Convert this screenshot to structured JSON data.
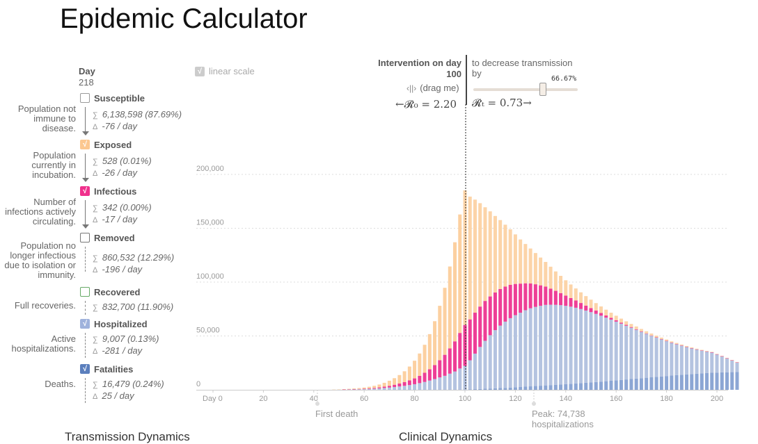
{
  "title": "Epidemic Calculator",
  "day": {
    "label": "Day",
    "value": "218"
  },
  "compartments": [
    {
      "name": "Susceptible",
      "checked": false,
      "color": "#ffffff",
      "border": "#999999",
      "description": [
        "Population not",
        "immune to",
        "disease."
      ],
      "sum": "6,138,598 (87.69%)",
      "delta": "-76 / day"
    },
    {
      "name": "Exposed",
      "checked": true,
      "color": "#fcc890",
      "border": "#fcc890",
      "description": [
        "Population",
        "currently in",
        "incubation."
      ],
      "sum": "528 (0.01%)",
      "delta": "-26 / day"
    },
    {
      "name": "Infectious",
      "checked": true,
      "color": "#f0308c",
      "border": "#f0308c",
      "description": [
        "Number of",
        "infections actively",
        "circulating."
      ],
      "sum": "342 (0.00%)",
      "delta": "-17 / day"
    },
    {
      "name": "Removed",
      "checked": false,
      "color": "#ffffff",
      "border": "#777777",
      "description": [
        "Population no",
        "longer infectious",
        "due to isolation or",
        "immunity."
      ],
      "sum": "860,532 (12.29%)",
      "delta": "-196 / day"
    },
    {
      "name": "Recovered",
      "checked": false,
      "color": "#ffffff",
      "border": "#66aa66",
      "description": [
        "Full recoveries."
      ],
      "sum": "832,700 (11.90%)"
    },
    {
      "name": "Hospitalized",
      "checked": true,
      "color": "#9fb2dc",
      "border": "#9fb2dc",
      "description": [
        "Active",
        "hospitalizations."
      ],
      "sum": "9,007 (0.13%)",
      "delta": "-281 / day"
    },
    {
      "name": "Fatalities",
      "checked": true,
      "color": "#5b7fbd",
      "border": "#5b7fbd",
      "description": [
        "Deaths."
      ],
      "sum": "16,479 (0.24%)",
      "delta": "25 / day"
    }
  ],
  "controls": {
    "linear_scale": "linear scale",
    "intervention_label": "Intervention on day",
    "intervention_day": "100",
    "drag_hint": "(drag me)",
    "decrease_text": "to decrease transmission by",
    "slider_percent": "66.67%",
    "slider_fraction": 0.6667,
    "r0_text": "←𝓡₀ = 2.20",
    "rt_text": "𝓡ₜ = 0.73→"
  },
  "annotations": {
    "first_death": "First death",
    "peak": [
      "Peak: 74,738",
      "hospitalizations"
    ]
  },
  "sections": {
    "left": "Transmission Dynamics",
    "right": "Clinical Dynamics"
  },
  "chart_data": {
    "type": "bar",
    "stacked": true,
    "x_start": 0,
    "x_step": 2,
    "intervention_day": 100,
    "ylim": [
      0,
      250000
    ],
    "xlim": [
      0,
      210
    ],
    "yticks": [
      0,
      50000,
      100000,
      150000,
      200000
    ],
    "ytick_labels": [
      "0",
      "50,000",
      "100,000",
      "150,000",
      "200,000"
    ],
    "xticks": [
      0,
      20,
      40,
      60,
      80,
      100,
      120,
      140,
      160,
      180,
      200
    ],
    "xtick_labels": [
      "Day 0",
      "20",
      "40",
      "60",
      "80",
      "100",
      "120",
      "140",
      "160",
      "180",
      "200"
    ],
    "grid": true,
    "series": [
      {
        "name": "Fatalities",
        "color": "#8ca6d4",
        "values": [
          0,
          0,
          0,
          0,
          0,
          0,
          0,
          0,
          0,
          0,
          0,
          0,
          0,
          0,
          0,
          0,
          0,
          0,
          0,
          0,
          0,
          0,
          0,
          0,
          0,
          0,
          0,
          0,
          0,
          0,
          0,
          0,
          0,
          0,
          0,
          0,
          0,
          0,
          0,
          0,
          0,
          0,
          0,
          0,
          0,
          0,
          0,
          0,
          0,
          0,
          200,
          400,
          600,
          800,
          1000,
          1200,
          1400,
          1600,
          1800,
          2000,
          2300,
          2600,
          2900,
          3200,
          3500,
          3800,
          4100,
          4400,
          4700,
          5000,
          5300,
          5600,
          5900,
          6200,
          6500,
          6800,
          7200,
          7600,
          8000,
          8400,
          8800,
          9200,
          9600,
          10000,
          10400,
          10800,
          11200,
          11600,
          12000,
          12400,
          12800,
          13200,
          13600,
          14000,
          14300,
          14600,
          14900,
          15200,
          15500,
          15800,
          16000,
          16200,
          16300,
          16400,
          16479
        ]
      },
      {
        "name": "Hospitalized",
        "color": "#b4c3e0",
        "values": [
          0,
          0,
          0,
          0,
          0,
          0,
          0,
          0,
          0,
          0,
          0,
          0,
          0,
          0,
          0,
          0,
          0,
          0,
          0,
          0,
          0,
          0,
          0,
          0,
          100,
          150,
          200,
          300,
          400,
          500,
          600,
          800,
          1000,
          1300,
          1700,
          2100,
          2600,
          3100,
          3700,
          4400,
          5200,
          6200,
          7300,
          8600,
          10000,
          11500,
          13000,
          15000,
          17000,
          19800,
          22000,
          27000,
          33000,
          39000,
          44500,
          49500,
          54000,
          58000,
          61500,
          64500,
          67000,
          69000,
          71000,
          72500,
          73500,
          74200,
          74738,
          74600,
          74200,
          73600,
          72700,
          71600,
          70300,
          68800,
          67100,
          65300,
          63300,
          61200,
          59000,
          56800,
          54500,
          52200,
          49900,
          47600,
          45300,
          43000,
          40800,
          38600,
          36500,
          34500,
          32500,
          30600,
          28800,
          27100,
          25500,
          24000,
          22600,
          21300,
          20100,
          19000,
          17000,
          15000,
          13000,
          11000,
          9007
        ]
      },
      {
        "name": "Infectious",
        "color": "#ee3e96",
        "values": [
          0,
          0,
          0,
          0,
          0,
          0,
          0,
          0,
          0,
          0,
          0,
          0,
          0,
          0,
          0,
          0,
          0,
          0,
          0,
          0,
          0,
          0,
          0,
          0,
          0,
          0,
          100,
          200,
          250,
          300,
          400,
          500,
          700,
          900,
          1200,
          1600,
          2100,
          2700,
          3400,
          4300,
          5400,
          6800,
          8500,
          10500,
          13000,
          16000,
          19500,
          23500,
          28000,
          33000,
          38000,
          38000,
          38000,
          37500,
          37000,
          36000,
          35000,
          34000,
          32500,
          31000,
          29000,
          27000,
          25000,
          23000,
          21000,
          19000,
          17000,
          15000,
          13000,
          11200,
          9500,
          8000,
          6700,
          5600,
          4600,
          3800,
          3100,
          2500,
          2000,
          1600,
          1300,
          1000,
          800,
          650,
          520,
          420,
          340,
          270,
          220,
          180,
          150,
          120,
          100,
          90,
          80,
          70,
          60,
          50,
          45,
          40,
          35,
          30,
          25,
          20,
          15
        ]
      },
      {
        "name": "Exposed",
        "color": "#fcd4a8",
        "values": [
          0,
          0,
          0,
          0,
          0,
          0,
          0,
          0,
          0,
          0,
          0,
          0,
          0,
          0,
          0,
          0,
          0,
          0,
          0,
          0,
          0,
          0,
          0,
          0,
          100,
          200,
          300,
          400,
          600,
          800,
          1100,
          1500,
          2000,
          2700,
          3600,
          4700,
          6100,
          7900,
          10100,
          12900,
          16400,
          20700,
          26000,
          32600,
          40700,
          50500,
          62200,
          76000,
          92000,
          110000,
          125000,
          114000,
          105000,
          96000,
          87000,
          79000,
          71000,
          64000,
          57500,
          51500,
          46000,
          41000,
          36500,
          32500,
          29000,
          25800,
          22900,
          20300,
          18000,
          16000,
          14200,
          12600,
          11200,
          9900,
          8800,
          7800,
          6900,
          6100,
          5400,
          4800,
          4200,
          3700,
          3300,
          2900,
          2600,
          2300,
          2000,
          1800,
          1600,
          1400,
          1250,
          1100,
          1000,
          900,
          800,
          700,
          620,
          550,
          490,
          430,
          380,
          340,
          300,
          270,
          240
        ]
      }
    ]
  }
}
